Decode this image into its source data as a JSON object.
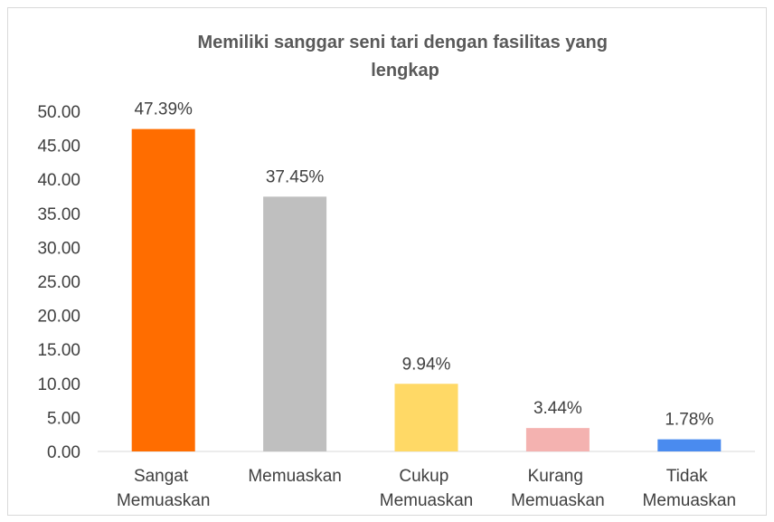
{
  "chart_data": {
    "type": "bar",
    "title": "Memiliki sanggar seni tari dengan fasilitas yang lengkap",
    "categories": [
      "Sangat Memuaskan",
      "Memuaskan",
      "Cukup Memuaskan",
      "Kurang Memuaskan",
      "Tidak Memuaskan"
    ],
    "values": [
      47.39,
      37.45,
      9.94,
      3.44,
      1.78
    ],
    "value_labels": [
      "47.39%",
      "37.45%",
      "9.94%",
      "3.44%",
      "1.78%"
    ],
    "colors": [
      "#ff6d00",
      "#bfbfbf",
      "#ffd966",
      "#f4b2b0",
      "#4a8bef"
    ],
    "ylim": [
      0,
      50
    ],
    "yticks": [
      {
        "value": 0,
        "label": "0.00"
      },
      {
        "value": 5,
        "label": "5.00"
      },
      {
        "value": 10,
        "label": "10.00"
      },
      {
        "value": 15,
        "label": "15.00"
      },
      {
        "value": 20,
        "label": "20.00"
      },
      {
        "value": 25,
        "label": "25.00"
      },
      {
        "value": 30,
        "label": "30.00"
      },
      {
        "value": 35,
        "label": "35.00"
      },
      {
        "value": 40,
        "label": "40.00"
      },
      {
        "value": 45,
        "label": "45.00"
      },
      {
        "value": 50,
        "label": "50.00"
      }
    ],
    "grid": false
  }
}
